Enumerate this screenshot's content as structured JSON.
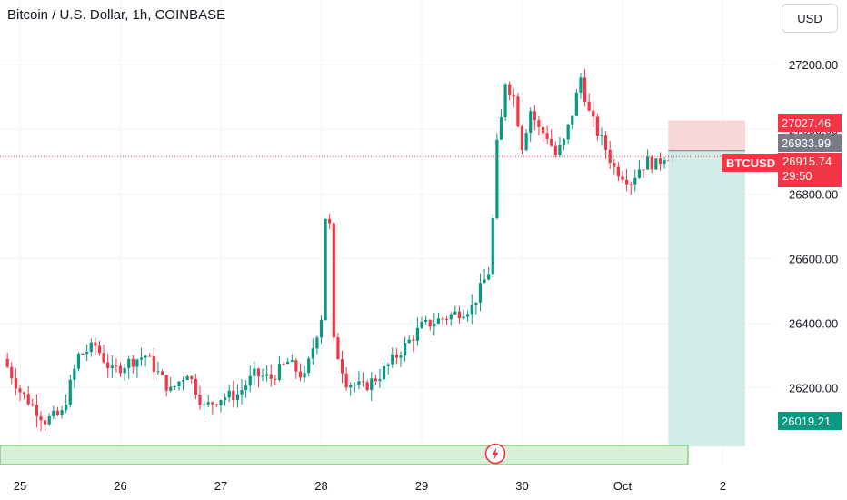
{
  "header": {
    "title": "Bitcoin / U.S. Dollar, 1h, COINBASE"
  },
  "currency_button": {
    "label": "USD"
  },
  "price_tags": {
    "stop_loss": "27027.46",
    "entry": "26933.99",
    "current": "26915.74",
    "countdown": "29:50",
    "target": "26019.21",
    "symbol": "BTCUSD"
  },
  "colors": {
    "up": "#089981",
    "down": "#f23645",
    "stop_zone": "#f7c9c9",
    "target_zone": "#cdeae6",
    "entry_tag": "#787b86",
    "target_tag": "#089981",
    "alert_bar": "#d9f0d8"
  },
  "icons": {
    "alert": "lightning-icon"
  },
  "chart_data": {
    "type": "candlestick",
    "title": "Bitcoin / U.S. Dollar, 1h, COINBASE",
    "ylim": [
      25960,
      27330
    ],
    "y_ticks": [
      27200,
      27000,
      26800,
      26600,
      26400,
      26200
    ],
    "y_tick_labels": [
      "27200.00",
      "27000.00",
      "26800.00",
      "26600.00",
      "26400.00",
      "26200.00"
    ],
    "x_tick_labels": [
      "25",
      "26",
      "27",
      "28",
      "29",
      "30",
      "Oct",
      "2"
    ],
    "x_tick_day_index": [
      0,
      1,
      2,
      3,
      4,
      5,
      6,
      7
    ],
    "x_day_start": 25,
    "candles_per_day": 24,
    "start_offset_hours": -4,
    "close_path": [
      [
        0,
        26290
      ],
      [
        4,
        26190
      ],
      [
        10,
        26100
      ],
      [
        14,
        26120
      ],
      [
        18,
        26300
      ],
      [
        22,
        26330
      ],
      [
        26,
        26250
      ],
      [
        30,
        26280
      ],
      [
        34,
        26300
      ],
      [
        40,
        26190
      ],
      [
        44,
        26250
      ],
      [
        48,
        26140
      ],
      [
        52,
        26170
      ],
      [
        56,
        26180
      ],
      [
        60,
        26240
      ],
      [
        64,
        26230
      ],
      [
        68,
        26280
      ],
      [
        72,
        26230
      ],
      [
        76,
        26420
      ],
      [
        77,
        26730
      ],
      [
        78,
        26700
      ],
      [
        79,
        26340
      ],
      [
        82,
        26220
      ],
      [
        86,
        26200
      ],
      [
        90,
        26240
      ],
      [
        94,
        26300
      ],
      [
        100,
        26390
      ],
      [
        106,
        26420
      ],
      [
        112,
        26450
      ],
      [
        116,
        26560
      ],
      [
        117,
        26720
      ],
      [
        118,
        26950
      ],
      [
        119,
        27030
      ],
      [
        120,
        27150
      ],
      [
        122,
        27100
      ],
      [
        124,
        26950
      ],
      [
        126,
        27060
      ],
      [
        128,
        27000
      ],
      [
        130,
        26980
      ],
      [
        132,
        26920
      ],
      [
        134,
        26960
      ],
      [
        136,
        27050
      ],
      [
        138,
        27160
      ],
      [
        140,
        27050
      ],
      [
        142,
        26990
      ],
      [
        144,
        26940
      ],
      [
        146,
        26880
      ],
      [
        148,
        26860
      ],
      [
        150,
        26840
      ],
      [
        152,
        26880
      ],
      [
        154,
        26900
      ],
      [
        156,
        26890
      ],
      [
        158,
        26920
      ],
      [
        160,
        26915.74
      ]
    ],
    "position": {
      "side": "short",
      "entry": 26933.99,
      "stop": 27027.46,
      "target": 26019.21,
      "current": 26915.74
    }
  }
}
